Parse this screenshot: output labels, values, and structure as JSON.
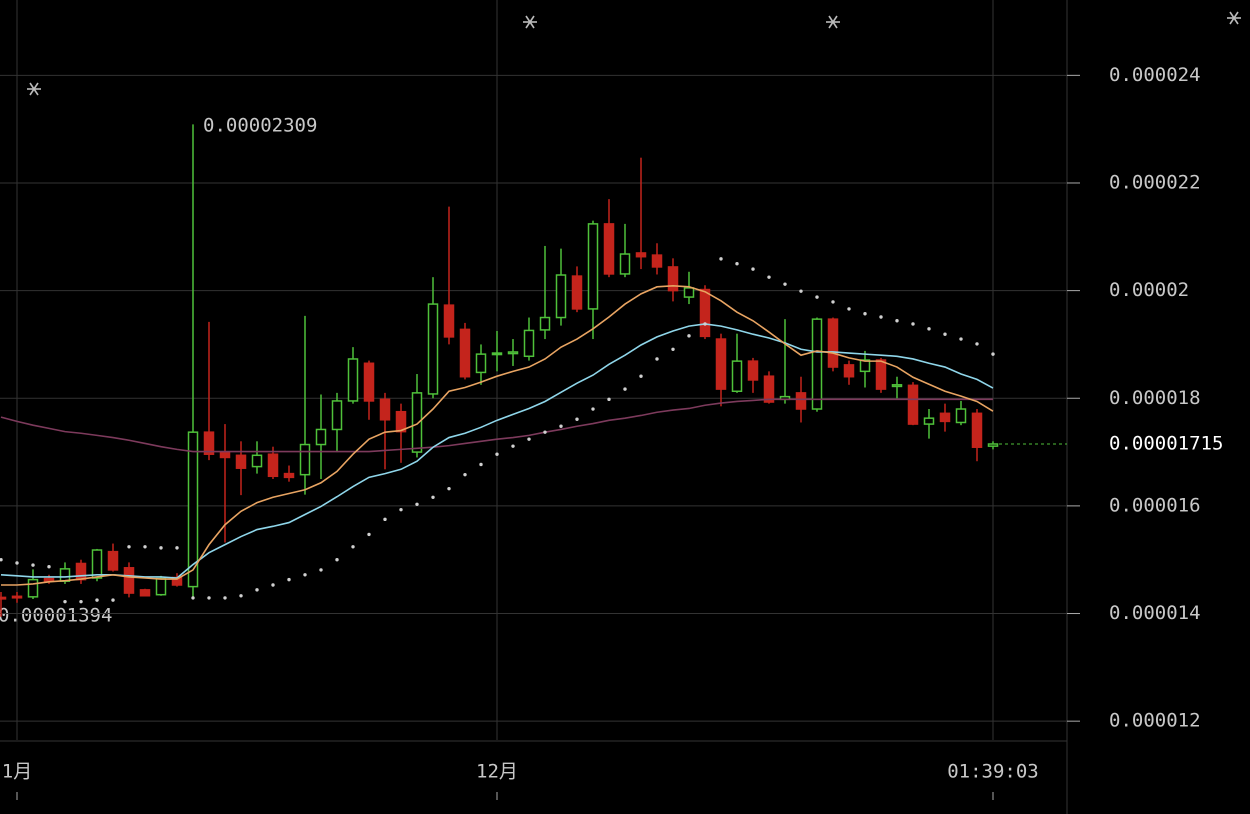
{
  "chart_data": {
    "type": "candlestick",
    "ylim": [
      1.165e-05,
      2.54e-05
    ],
    "yticks": [
      1.2e-05,
      1.4e-05,
      1.6e-05,
      1.8e-05,
      2e-05,
      2.2e-05,
      2.4e-05
    ],
    "grid": true,
    "up_color": "#4fc13a",
    "down_color": "#c4241c",
    "categories": [
      null,
      "1月",
      null,
      null,
      null,
      null,
      null,
      null,
      null,
      null,
      null,
      null,
      null,
      null,
      null,
      null,
      null,
      null,
      null,
      null,
      null,
      null,
      null,
      null,
      null,
      null,
      null,
      null,
      null,
      null,
      null,
      "12月",
      null,
      null,
      null,
      null,
      null,
      null,
      null,
      null,
      null,
      null,
      null,
      null,
      null,
      null,
      null,
      null,
      null,
      null,
      null,
      null,
      null,
      null,
      null,
      null,
      null,
      null,
      null,
      null,
      null,
      null,
      "01:39:03"
    ],
    "open": [
      1.43e-05,
      1.432e-05,
      1.431e-05,
      1.465e-05,
      1.46e-05,
      1.493e-05,
      1.466e-05,
      1.515e-05,
      1.485e-05,
      1.444e-05,
      1.435e-05,
      1.467e-05,
      1.45e-05,
      1.737e-05,
      1.7e-05,
      1.694e-05,
      1.673e-05,
      1.696e-05,
      1.66e-05,
      1.658e-05,
      1.714e-05,
      1.742e-05,
      1.795e-05,
      1.865e-05,
      1.798e-05,
      1.775e-05,
      1.7e-05,
      1.808e-05,
      1.973e-05,
      1.928e-05,
      1.848e-05,
      1.882e-05,
      1.883e-05,
      1.878e-05,
      1.927e-05,
      1.95e-05,
      2.027e-05,
      1.966e-05,
      2.124e-05,
      2.031e-05,
      2.07e-05,
      2.066e-05,
      2.044e-05,
      1.988e-05,
      2.002e-05,
      1.91e-05,
      1.813e-05,
      1.869e-05,
      1.841e-05,
      1.798e-05,
      1.81e-05,
      1.78e-05,
      1.947e-05,
      1.862e-05,
      1.85e-05,
      1.871e-05,
      1.822e-05,
      1.824e-05,
      1.752e-05,
      1.772e-05,
      1.755e-05,
      1.772e-05,
      1.711e-05
    ],
    "high": [
      1.44e-05,
      1.44e-05,
      1.482e-05,
      1.472e-05,
      1.495e-05,
      1.5e-05,
      1.52e-05,
      1.53e-05,
      1.495e-05,
      1.446e-05,
      1.47e-05,
      1.475e-05,
      2.309e-05,
      1.942e-05,
      1.752e-05,
      1.72e-05,
      1.72e-05,
      1.71e-05,
      1.675e-05,
      1.953e-05,
      1.807e-05,
      1.81e-05,
      1.895e-05,
      1.87e-05,
      1.81e-05,
      1.79e-05,
      1.845e-05,
      2.025e-05,
      2.156e-05,
      1.94e-05,
      1.9e-05,
      1.925e-05,
      1.91e-05,
      1.95e-05,
      2.083e-05,
      2.078e-05,
      2.045e-05,
      2.13e-05,
      2.17e-05,
      2.124e-05,
      2.247e-05,
      2.088e-05,
      2.06e-05,
      2.035e-05,
      2.01e-05,
      1.92e-05,
      1.92e-05,
      1.875e-05,
      1.85e-05,
      1.947e-05,
      1.84e-05,
      1.95e-05,
      1.95e-05,
      1.87e-05,
      1.888e-05,
      1.875e-05,
      1.84e-05,
      1.83e-05,
      1.78e-05,
      1.79e-05,
      1.795e-05,
      1.78e-05,
      1.72e-05
    ],
    "low": [
      1.394e-05,
      1.42e-05,
      1.427e-05,
      1.455e-05,
      1.455e-05,
      1.455e-05,
      1.46e-05,
      1.478e-05,
      1.43e-05,
      1.432e-05,
      1.433e-05,
      1.45e-05,
      1.431e-05,
      1.685e-05,
      1.532e-05,
      1.62e-05,
      1.66e-05,
      1.65e-05,
      1.645e-05,
      1.621e-05,
      1.65e-05,
      1.7e-05,
      1.79e-05,
      1.76e-05,
      1.668e-05,
      1.68e-05,
      1.69e-05,
      1.8e-05,
      1.9e-05,
      1.835e-05,
      1.825e-05,
      1.85e-05,
      1.86e-05,
      1.87e-05,
      1.91e-05,
      1.935e-05,
      1.96e-05,
      1.91e-05,
      2.025e-05,
      2.025e-05,
      2.04e-05,
      2.03e-05,
      1.98e-05,
      1.975e-05,
      1.91e-05,
      1.785e-05,
      1.81e-05,
      1.81e-05,
      1.79e-05,
      1.79e-05,
      1.755e-05,
      1.775e-05,
      1.85e-05,
      1.825e-05,
      1.82e-05,
      1.81e-05,
      1.8e-05,
      1.75e-05,
      1.725e-05,
      1.738e-05,
      1.75e-05,
      1.683e-05,
      1.705e-05
    ],
    "close": [
      1.428e-05,
      1.43e-05,
      1.463e-05,
      1.46e-05,
      1.483e-05,
      1.463e-05,
      1.518e-05,
      1.481e-05,
      1.438e-05,
      1.433e-05,
      1.465e-05,
      1.453e-05,
      1.737e-05,
      1.696e-05,
      1.69e-05,
      1.67e-05,
      1.694e-05,
      1.655e-05,
      1.653e-05,
      1.714e-05,
      1.742e-05,
      1.795e-05,
      1.873e-05,
      1.795e-05,
      1.76e-05,
      1.738e-05,
      1.81e-05,
      1.975e-05,
      1.914e-05,
      1.84e-05,
      1.882e-05,
      1.884e-05,
      1.886e-05,
      1.926e-05,
      1.95e-05,
      2.029e-05,
      1.966e-05,
      2.124e-05,
      2.031e-05,
      2.068e-05,
      2.063e-05,
      2.044e-05,
      2e-05,
      2.005e-05,
      1.915e-05,
      1.817e-05,
      1.869e-05,
      1.834e-05,
      1.793e-05,
      1.803e-05,
      1.78e-05,
      1.947e-05,
      1.858e-05,
      1.84e-05,
      1.871e-05,
      1.817e-05,
      1.825e-05,
      1.752e-05,
      1.763e-05,
      1.757e-05,
      1.78e-05,
      1.709e-05,
      1.715e-05
    ],
    "lines": [
      {
        "color": "#7d3a5c",
        "values": [
          1.765e-05,
          1.757e-05,
          1.75e-05,
          1.744e-05,
          1.738e-05,
          1.735e-05,
          1.731e-05,
          1.727e-05,
          1.722e-05,
          1.716e-05,
          1.71e-05,
          1.705e-05,
          1.701e-05,
          1.701e-05,
          1.701e-05,
          1.701e-05,
          1.701e-05,
          1.701e-05,
          1.701e-05,
          1.701e-05,
          1.701e-05,
          1.701e-05,
          1.701e-05,
          1.701e-05,
          1.703e-05,
          1.705e-05,
          1.707e-05,
          1.709e-05,
          1.712e-05,
          1.716e-05,
          1.72e-05,
          1.724e-05,
          1.727e-05,
          1.731e-05,
          1.737e-05,
          1.742e-05,
          1.748e-05,
          1.753e-05,
          1.759e-05,
          1.763e-05,
          1.768e-05,
          1.774e-05,
          1.778e-05,
          1.781e-05,
          1.787e-05,
          1.791e-05,
          1.794e-05,
          1.796e-05,
          1.798e-05,
          1.798e-05,
          1.798e-05,
          1.798e-05,
          1.798e-05,
          1.798e-05,
          1.798e-05,
          1.798e-05,
          1.798e-05,
          1.798e-05,
          1.798e-05,
          1.798e-05,
          1.798e-05,
          1.798e-05,
          1.798e-05
        ]
      },
      {
        "color": "#8fd6ea",
        "values": [
          1.472e-05,
          1.47e-05,
          1.468e-05,
          1.468e-05,
          1.468e-05,
          1.47e-05,
          1.472e-05,
          1.472e-05,
          1.47e-05,
          1.468e-05,
          1.468e-05,
          1.466e-05,
          1.491e-05,
          1.513e-05,
          1.528e-05,
          1.543e-05,
          1.556e-05,
          1.562e-05,
          1.569e-05,
          1.584e-05,
          1.599e-05,
          1.617e-05,
          1.636e-05,
          1.653e-05,
          1.66e-05,
          1.668e-05,
          1.683e-05,
          1.709e-05,
          1.727e-05,
          1.735e-05,
          1.746e-05,
          1.759e-05,
          1.77e-05,
          1.781e-05,
          1.794e-05,
          1.811e-05,
          1.828e-05,
          1.843e-05,
          1.863e-05,
          1.88e-05,
          1.899e-05,
          1.914e-05,
          1.925e-05,
          1.934e-05,
          1.938e-05,
          1.934e-05,
          1.927e-05,
          1.919e-05,
          1.912e-05,
          1.903e-05,
          1.891e-05,
          1.886e-05,
          1.886e-05,
          1.884e-05,
          1.882e-05,
          1.88e-05,
          1.878e-05,
          1.873e-05,
          1.865e-05,
          1.858e-05,
          1.845e-05,
          1.835e-05,
          1.819e-05
        ]
      },
      {
        "color": "#e8a462",
        "values": [
          1.453e-05,
          1.453e-05,
          1.455e-05,
          1.459e-05,
          1.461e-05,
          1.464e-05,
          1.468e-05,
          1.472e-05,
          1.468e-05,
          1.466e-05,
          1.464e-05,
          1.464e-05,
          1.481e-05,
          1.528e-05,
          1.565e-05,
          1.59e-05,
          1.606e-05,
          1.616e-05,
          1.623e-05,
          1.63e-05,
          1.643e-05,
          1.664e-05,
          1.696e-05,
          1.724e-05,
          1.737e-05,
          1.74e-05,
          1.752e-05,
          1.78e-05,
          1.813e-05,
          1.82e-05,
          1.83e-05,
          1.841e-05,
          1.85e-05,
          1.858e-05,
          1.873e-05,
          1.895e-05,
          1.91e-05,
          1.929e-05,
          1.951e-05,
          1.975e-05,
          1.994e-05,
          2.007e-05,
          2.009e-05,
          2.007e-05,
          1.998e-05,
          1.981e-05,
          1.96e-05,
          1.944e-05,
          1.923e-05,
          1.901e-05,
          1.88e-05,
          1.888e-05,
          1.884e-05,
          1.875e-05,
          1.869e-05,
          1.869e-05,
          1.858e-05,
          1.839e-05,
          1.826e-05,
          1.813e-05,
          1.804e-05,
          1.794e-05,
          1.776e-05
        ]
      }
    ],
    "sar": {
      "color": "#d0d0d0",
      "values": [
        1.5e-05,
        1.494e-05,
        1.49e-05,
        1.487e-05,
        1.422e-05,
        1.422e-05,
        1.425e-05,
        1.425e-05,
        1.524e-05,
        1.524e-05,
        1.522e-05,
        1.522e-05,
        1.429e-05,
        1.429e-05,
        1.429e-05,
        1.433e-05,
        1.444e-05,
        1.453e-05,
        1.463e-05,
        1.472e-05,
        1.481e-05,
        1.5e-05,
        1.524e-05,
        1.547e-05,
        1.575e-05,
        1.593e-05,
        1.603e-05,
        1.616e-05,
        1.632e-05,
        1.658e-05,
        1.677e-05,
        1.696e-05,
        1.711e-05,
        1.724e-05,
        1.737e-05,
        1.748e-05,
        1.761e-05,
        1.78e-05,
        1.798e-05,
        1.817e-05,
        1.841e-05,
        1.873e-05,
        1.891e-05,
        1.916e-05,
        1.938e-05,
        2.059e-05,
        2.05e-05,
        2.04e-05,
        2.025e-05,
        2.012e-05,
        1.999e-05,
        1.988e-05,
        1.979e-05,
        1.966e-05,
        1.957e-05,
        1.951e-05,
        1.944e-05,
        1.938e-05,
        1.929e-05,
        1.919e-05,
        1.91e-05,
        1.901e-05,
        1.882e-05
      ]
    },
    "annotations": {
      "high_label": "0.00002309",
      "low_label": "0.00001394",
      "last_label": "0.00001715"
    }
  }
}
